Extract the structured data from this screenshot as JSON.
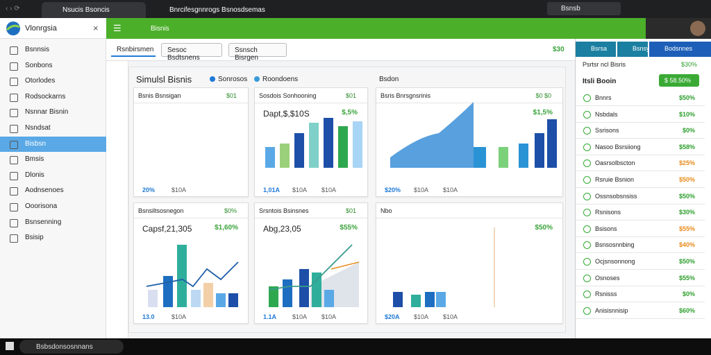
{
  "browser": {
    "tabs": [
      "Nsucis Bsoncis",
      "Bnrcifesgnnrogs Bsnosdsemas"
    ],
    "search": "Bsnsb"
  },
  "sidebar": {
    "title": "Vlonrgsia",
    "items": [
      "Bsnnsis",
      "Sonbons",
      "Otorlodes",
      "Rodsockarns",
      "Nsnnar Bisnin",
      "Nsndsat",
      "Bisbsn",
      "Bmsis",
      "Dlonis",
      "Aodnsenoes",
      "Ooorisona",
      "Bsnsenning",
      "Bsisip"
    ]
  },
  "appbar": {
    "title": "Bisnis"
  },
  "toolbar": {
    "buttons": [
      "Rsnbirsmen",
      "Sesoc Bsdtsnens",
      "Ssnsch Bisrgen"
    ],
    "badge": "$30"
  },
  "main": {
    "title": "Simulsl Bisnis",
    "legend": [
      "Sonrosos",
      "Roondoens"
    ],
    "side_title": "Bsdon",
    "cards": [
      {
        "title": "Bsnis Bsnsigan",
        "tag": "$01",
        "footer": [
          "20%",
          "$10A"
        ]
      },
      {
        "title": "Sosdois Sonhooning",
        "tag": "$01",
        "headline": "Dapt,$,$10S",
        "pct": "$,5%",
        "footer": [
          "1,01A",
          "$10A",
          "$10A"
        ]
      },
      {
        "title": "Bsris Bnrsgnsrinis",
        "tag": "$0 $0",
        "pct": "$1,5%",
        "footer": [
          "$20%",
          "$10A",
          "$10A"
        ]
      },
      {
        "title": "Bsnsiltsosnegon",
        "tag": "$0%",
        "headline": "Capsf,21,305",
        "pct": "$1,60%",
        "footer": [
          "13.0",
          "$10A"
        ]
      },
      {
        "title": "Srsntois Bsinsnes",
        "tag": "$01",
        "headline": "Abg,23,05",
        "pct": "$55%",
        "footer": [
          "1.1A",
          "$10A",
          "$10A"
        ]
      },
      {
        "title": "Nbo",
        "pct": "$50%",
        "footer": [
          "$20A",
          "$10A",
          "$10A"
        ]
      }
    ]
  },
  "panel": {
    "tabs": [
      "Bsrsa",
      "Bsnsy",
      "Bodsnnes"
    ],
    "header": [
      "Psrtsr ncl Bisris",
      "$30%"
    ],
    "highlight": [
      "Itsli Booin",
      "$ 58.50%"
    ],
    "rows": [
      [
        "Bnnrs",
        "$50%"
      ],
      [
        "Nsbdals",
        "$10%"
      ],
      [
        "Ssrisons",
        "$0%"
      ],
      [
        "Nasoo Bsrsiiong",
        "$58%"
      ],
      [
        "Oasrsolbscton",
        "$25%"
      ],
      [
        "Rsruie Bsnion",
        "$50%"
      ],
      [
        "Ossnsobsnsiss",
        "$50%"
      ],
      [
        "Rsnisons",
        "$30%"
      ],
      [
        "Bsisons",
        "$55%"
      ],
      [
        "Bsnsosnnbing",
        "$40%"
      ],
      [
        "Ocjsnsonnong",
        "$50%"
      ],
      [
        "Osnoses",
        "$55%"
      ],
      [
        "Rsnisss",
        "$0%"
      ],
      [
        "Anisisnnisip",
        "$60%"
      ]
    ]
  },
  "taskbar": {
    "search": "Bsbsdonsosnnans"
  }
}
